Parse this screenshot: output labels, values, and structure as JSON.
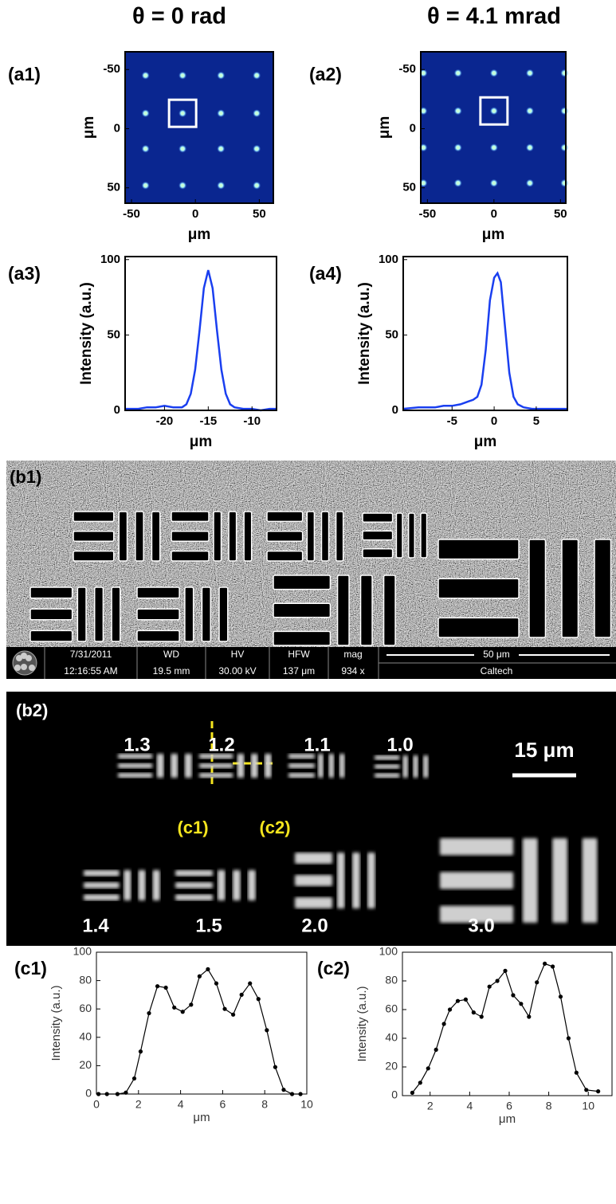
{
  "headers": [
    "θ = 0 rad",
    "θ = 4.1 mrad"
  ],
  "chart_data": [
    {
      "type": "scatter",
      "panel": "(a1)",
      "xlabel": "μm",
      "ylabel": "μm",
      "background": "#0a2690",
      "color": "#c9ffd6",
      "x": [
        -39,
        -10,
        20,
        48,
        -39,
        -10,
        20,
        48,
        -39,
        -10,
        20,
        48,
        -39,
        -10,
        20,
        48
      ],
      "y": [
        -45,
        -45,
        -45,
        -45,
        -13,
        -13,
        -13,
        -13,
        17,
        17,
        17,
        17,
        48,
        48,
        48,
        48
      ],
      "xlim": [
        -55,
        61
      ],
      "ylim": [
        -65,
        63
      ],
      "y_inverted": true,
      "xticks": [
        -50,
        0,
        50
      ],
      "yticks": [
        -50,
        0,
        50
      ]
    },
    {
      "type": "scatter",
      "panel": "(a2)",
      "xlabel": "μm",
      "ylabel": "μm",
      "background": "#0a2690",
      "color": "#c9ffd6",
      "x": [
        -53,
        -27,
        0,
        27,
        53,
        -53,
        -27,
        0,
        27,
        53,
        -53,
        -27,
        0,
        27,
        53,
        -53,
        -27,
        0,
        27,
        53
      ],
      "y": [
        -47,
        -47,
        -47,
        -47,
        -47,
        -15,
        -15,
        -15,
        -15,
        -15,
        16,
        16,
        16,
        16,
        16,
        46,
        46,
        46,
        46,
        46
      ],
      "xlim": [
        -55,
        54
      ],
      "ylim": [
        -65,
        63
      ],
      "y_inverted": true,
      "xticks": [
        -50,
        0,
        50
      ],
      "yticks": [
        -50,
        0,
        50
      ]
    },
    {
      "type": "line",
      "panel": "(a3)",
      "xlabel": "μm",
      "ylabel": "Intensity (a.u.)",
      "color": "#1a3ff0",
      "x": [
        -24.5,
        -23,
        -22,
        -21,
        -20,
        -19,
        -18,
        -17.5,
        -17,
        -16.5,
        -16,
        -15.5,
        -15,
        -14.5,
        -14,
        -13.5,
        -13,
        -12.5,
        -12,
        -11,
        -10,
        -9,
        -8,
        -7.2
      ],
      "values": [
        1,
        1,
        2,
        2,
        3,
        2,
        2,
        4,
        11,
        27,
        53,
        81,
        93,
        81,
        53,
        27,
        11,
        4,
        2,
        1,
        1,
        0,
        1,
        1
      ],
      "xlim": [
        -24.5,
        -7.2
      ],
      "ylim": [
        0,
        102
      ],
      "xticks": [
        -20,
        -15,
        -10
      ],
      "yticks": [
        0,
        50,
        100
      ]
    },
    {
      "type": "line",
      "panel": "(a4)",
      "xlabel": "μm",
      "ylabel": "Intensity (a.u.)",
      "color": "#1a3ff0",
      "x": [
        -10.8,
        -9,
        -8,
        -7,
        -6,
        -5,
        -4,
        -3,
        -2.5,
        -2,
        -1.5,
        -1,
        -0.5,
        0,
        0.4,
        0.8,
        1.3,
        1.8,
        2.3,
        2.8,
        3.5,
        4.5,
        5.5,
        6.5,
        7.5,
        8.7
      ],
      "values": [
        1,
        2,
        2,
        2,
        3,
        3,
        4,
        6,
        7,
        9,
        17,
        40,
        73,
        88,
        91,
        85,
        55,
        25,
        9,
        4,
        2,
        1,
        1,
        1,
        1,
        1
      ],
      "xlim": [
        -10.8,
        8.7
      ],
      "ylim": [
        0,
        102
      ],
      "xticks": [
        -5,
        0,
        5
      ],
      "yticks": [
        0,
        50,
        100
      ]
    },
    {
      "type": "line",
      "panel": "(c1)",
      "xlabel": "μm",
      "ylabel": "Intensity (a.u.)",
      "color": "#000000",
      "markers": true,
      "x": [
        0.1,
        0.5,
        1.0,
        1.4,
        1.8,
        2.1,
        2.5,
        2.9,
        3.3,
        3.7,
        4.1,
        4.5,
        4.9,
        5.3,
        5.7,
        6.1,
        6.5,
        6.9,
        7.3,
        7.7,
        8.1,
        8.5,
        8.9,
        9.3,
        9.7
      ],
      "values": [
        0,
        0,
        0,
        1,
        11,
        30,
        57,
        76,
        75,
        61,
        58,
        63,
        83,
        88,
        78,
        60,
        56,
        70,
        78,
        67,
        45,
        19,
        3,
        0,
        0
      ],
      "xlim": [
        0,
        10
      ],
      "ylim": [
        0,
        100
      ],
      "xticks": [
        0,
        2,
        4,
        6,
        8,
        10
      ],
      "yticks": [
        0,
        20,
        40,
        60,
        80,
        100
      ]
    },
    {
      "type": "line",
      "panel": "(c2)",
      "xlabel": "μm",
      "ylabel": "Intensity (a.u.)",
      "color": "#000000",
      "markers": true,
      "x": [
        1.1,
        1.5,
        1.9,
        2.3,
        2.7,
        3.0,
        3.4,
        3.8,
        4.2,
        4.6,
        5.0,
        5.4,
        5.8,
        6.2,
        6.6,
        7.0,
        7.4,
        7.8,
        8.2,
        8.6,
        9.0,
        9.4,
        9.9,
        10.5
      ],
      "values": [
        2,
        9,
        19,
        32,
        50,
        60,
        66,
        67,
        58,
        55,
        76,
        80,
        87,
        70,
        64,
        55,
        79,
        92,
        90,
        69,
        40,
        16,
        4,
        3
      ],
      "xlim": [
        0.6,
        11.2
      ],
      "ylim": [
        0,
        100
      ],
      "xticks": [
        2,
        4,
        6,
        8,
        10
      ],
      "yticks": [
        0,
        20,
        40,
        60,
        80,
        100
      ]
    }
  ],
  "sem_image": {
    "label": "(b1)",
    "info": [
      "7/31/2011",
      "12:16:55 AM",
      "WD",
      "19.5 mm",
      "HV",
      "30.00 kV",
      "HFW",
      "137 μm",
      "mag",
      "934 x"
    ],
    "scale_bar": "50 μm",
    "institution": "Caltech"
  },
  "optical_image": {
    "label": "(b2)",
    "groups": [
      "1.3",
      "1.2",
      "1.1",
      "1.0",
      "1.4",
      "1.5",
      "2.0",
      "3.0"
    ],
    "scale_bar": "15 μm",
    "line_labels": [
      "(c1)",
      "(c2)"
    ]
  }
}
